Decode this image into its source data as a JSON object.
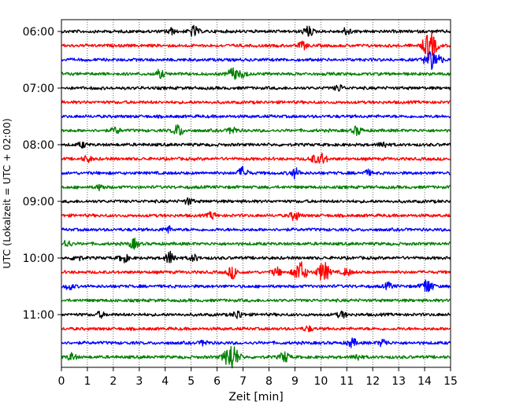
{
  "chart_data": {
    "type": "line",
    "title": "",
    "xlabel": "Zeit  [min]",
    "ylabel": "UTC (Lokalzeit = UTC + 02:00)",
    "xlim": [
      0,
      15
    ],
    "x_ticks": [
      "0",
      "1",
      "2",
      "3",
      "4",
      "5",
      "6",
      "7",
      "8",
      "9",
      "10",
      "11",
      "12",
      "13",
      "14",
      "15"
    ],
    "y_tick_labels": [
      "06:00",
      "07:00",
      "08:00",
      "09:00",
      "10:00",
      "11:00"
    ],
    "row_start": "06:00",
    "row_interval_minutes": 15,
    "grid": "vertical dotted lines at each minute",
    "color_cycle": [
      "#000000",
      "#ff0000",
      "#0000ff",
      "#008000"
    ],
    "rows": [
      {
        "start": "06:00",
        "events": [
          [
            5.1,
            0.5
          ],
          [
            9.5,
            0.5
          ],
          [
            11.0,
            0.35
          ],
          [
            4.2,
            0.3
          ]
        ]
      },
      {
        "start": "06:15",
        "events": [
          [
            14.25,
            1.0
          ],
          [
            14.1,
            0.6
          ],
          [
            9.3,
            0.35
          ]
        ]
      },
      {
        "start": "06:30",
        "events": [
          [
            14.2,
            0.8
          ],
          [
            14.5,
            0.5
          ]
        ]
      },
      {
        "start": "06:45",
        "events": [
          [
            6.6,
            0.55
          ],
          [
            3.8,
            0.35
          ],
          [
            7.0,
            0.3
          ]
        ]
      },
      {
        "start": "07:00",
        "events": [
          [
            10.7,
            0.3
          ]
        ]
      },
      {
        "start": "07:15",
        "events": []
      },
      {
        "start": "07:30",
        "events": []
      },
      {
        "start": "07:45",
        "events": [
          [
            4.5,
            0.55
          ],
          [
            11.4,
            0.4
          ],
          [
            6.6,
            0.35
          ],
          [
            2.1,
            0.3
          ]
        ]
      },
      {
        "start": "08:00",
        "events": [
          [
            12.4,
            0.3
          ],
          [
            0.8,
            0.25
          ]
        ]
      },
      {
        "start": "08:15",
        "events": [
          [
            10.05,
            0.5
          ],
          [
            1.0,
            0.3
          ],
          [
            9.7,
            0.3
          ]
        ]
      },
      {
        "start": "08:30",
        "events": [
          [
            7.0,
            0.55
          ],
          [
            9.0,
            0.45
          ],
          [
            11.8,
            0.25
          ]
        ]
      },
      {
        "start": "08:45",
        "events": [
          [
            1.5,
            0.25
          ]
        ]
      },
      {
        "start": "09:00",
        "events": [
          [
            4.9,
            0.3
          ]
        ]
      },
      {
        "start": "09:15",
        "events": [
          [
            9.0,
            0.45
          ],
          [
            5.8,
            0.3
          ]
        ]
      },
      {
        "start": "09:30",
        "events": [
          [
            4.1,
            0.3
          ]
        ]
      },
      {
        "start": "09:45",
        "events": [
          [
            2.8,
            0.45
          ],
          [
            0.2,
            0.35
          ]
        ]
      },
      {
        "start": "10:00",
        "events": [
          [
            4.2,
            0.6
          ],
          [
            2.4,
            0.4
          ],
          [
            0.6,
            0.3
          ],
          [
            5.1,
            0.3
          ]
        ]
      },
      {
        "start": "10:15",
        "events": [
          [
            9.2,
            1.0
          ],
          [
            10.1,
            0.95
          ],
          [
            6.6,
            0.55
          ],
          [
            8.3,
            0.4
          ],
          [
            11.0,
            0.35
          ]
        ]
      },
      {
        "start": "10:30",
        "events": [
          [
            14.1,
            0.7
          ],
          [
            12.6,
            0.3
          ],
          [
            0.3,
            0.3
          ]
        ]
      },
      {
        "start": "10:45",
        "events": []
      },
      {
        "start": "11:00",
        "events": [
          [
            6.8,
            0.4
          ],
          [
            10.8,
            0.3
          ],
          [
            1.5,
            0.25
          ]
        ]
      },
      {
        "start": "11:15",
        "events": [
          [
            9.5,
            0.25
          ]
        ]
      },
      {
        "start": "11:30",
        "events": [
          [
            11.2,
            0.4
          ],
          [
            12.4,
            0.35
          ],
          [
            5.5,
            0.25
          ]
        ]
      },
      {
        "start": "11:45",
        "events": [
          [
            6.55,
            1.3
          ],
          [
            8.6,
            0.5
          ],
          [
            0.4,
            0.35
          ],
          [
            11.4,
            0.3
          ]
        ]
      }
    ]
  }
}
